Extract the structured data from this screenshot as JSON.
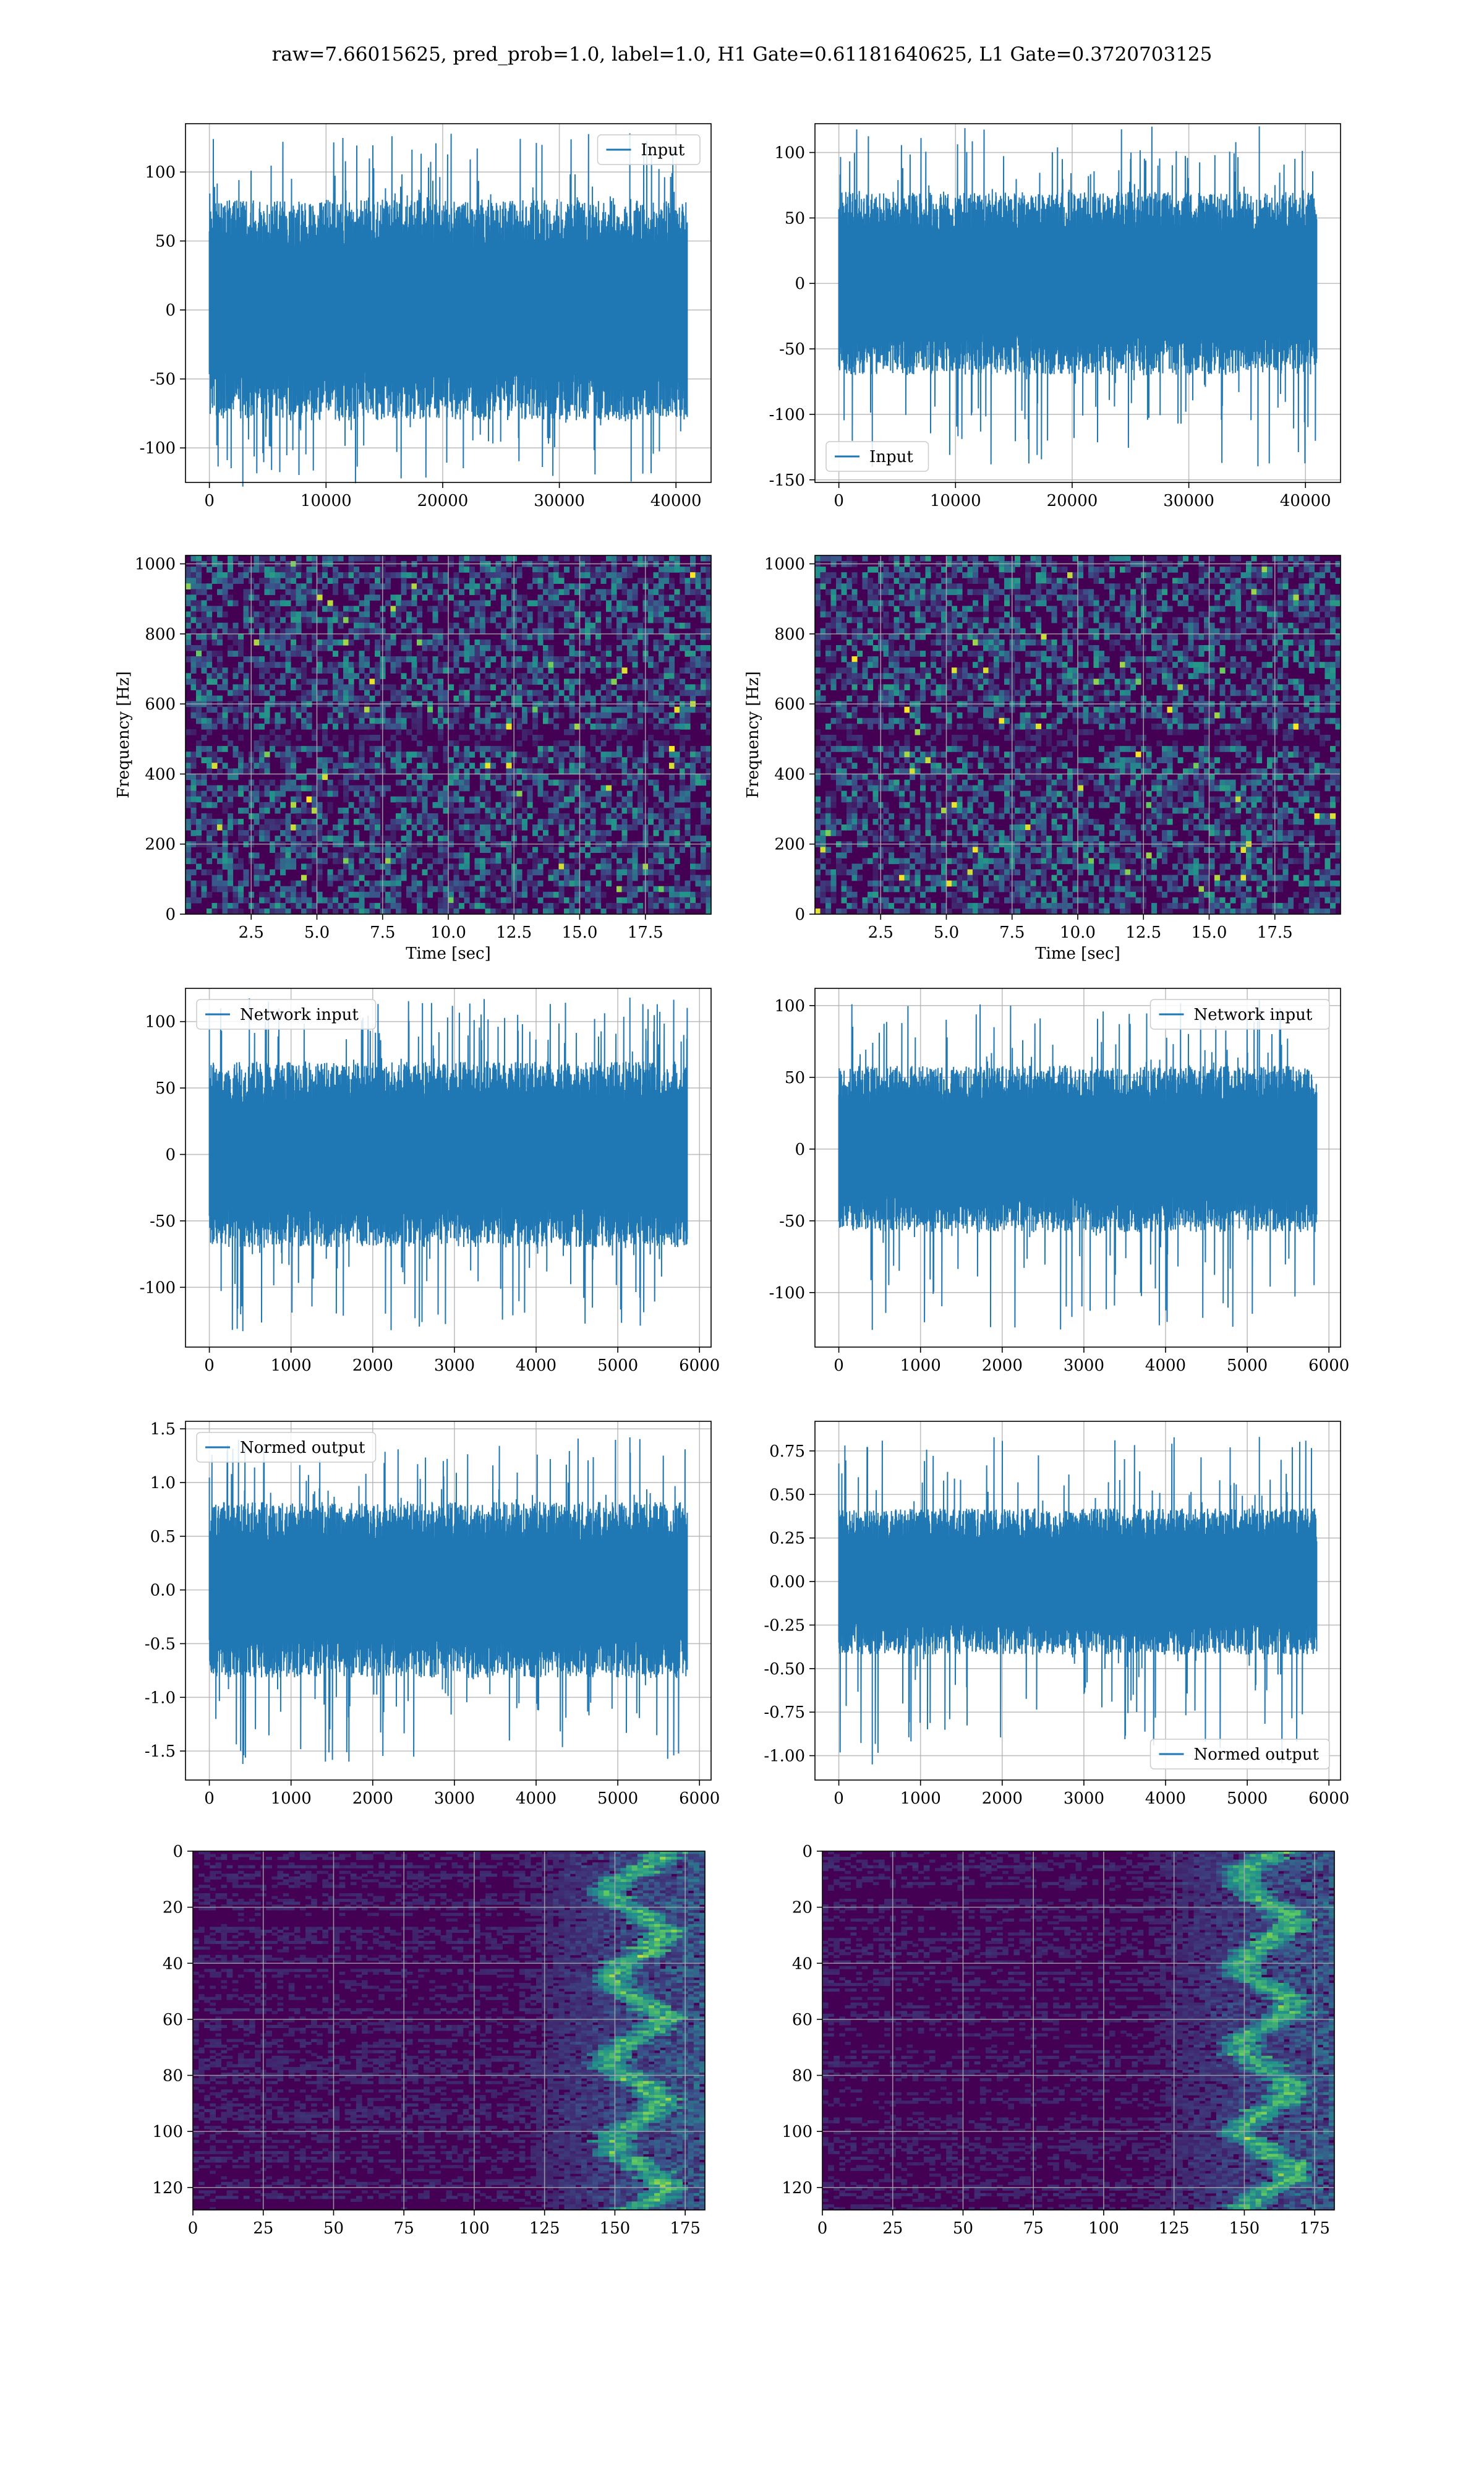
{
  "figure": {
    "title": "raw=7.66015625, pred_prob=1.0, label=1.0, H1 Gate=0.61181640625, L1 Gate=0.3720703125",
    "colors": {
      "line": "#1f77b4",
      "grid": "#b0b0b0",
      "viridis_low": "#440154",
      "viridis_mid": "#21918c",
      "viridis_high": "#fde725"
    }
  },
  "chart_data": [
    {
      "id": "h1-input",
      "type": "line",
      "series": [
        {
          "name": "Input",
          "amplitude": 80,
          "spike_max": 128,
          "spike_min": -128
        }
      ],
      "x": {
        "range": [
          0,
          40960
        ]
      },
      "xlim": [
        -2048,
        43008
      ],
      "ylim": [
        -125,
        135
      ],
      "xticks": [
        "0",
        "10000",
        "20000",
        "30000",
        "40000"
      ],
      "yticks": [
        "-100",
        "-50",
        "0",
        "50",
        "100"
      ],
      "legend": "top-right",
      "grid": true,
      "xlabel": "",
      "ylabel": ""
    },
    {
      "id": "l1-input",
      "type": "line",
      "series": [
        {
          "name": "Input",
          "amplitude": 70,
          "spike_max": 120,
          "spike_min": -140
        }
      ],
      "x": {
        "range": [
          0,
          40960
        ]
      },
      "xlim": [
        -2048,
        43008
      ],
      "ylim": [
        -152,
        122
      ],
      "xticks": [
        "0",
        "10000",
        "20000",
        "30000",
        "40000"
      ],
      "yticks": [
        "-150",
        "-100",
        "-50",
        "0",
        "50",
        "100"
      ],
      "legend": "bottom-left",
      "grid": true,
      "xlabel": "",
      "ylabel": ""
    },
    {
      "id": "h1-spectrogram",
      "type": "heatmap",
      "colormap": "viridis",
      "xlim": [
        0,
        20
      ],
      "ylim": [
        0,
        1024
      ],
      "xticks": [
        "2.5",
        "5.0",
        "7.5",
        "10.0",
        "12.5",
        "15.0",
        "17.5"
      ],
      "yticks": [
        "0",
        "200",
        "400",
        "600",
        "800",
        "1000"
      ],
      "xlabel": "Time [sec]",
      "ylabel": "Frequency [Hz]",
      "grid": true
    },
    {
      "id": "l1-spectrogram",
      "type": "heatmap",
      "colormap": "viridis",
      "xlim": [
        0,
        20
      ],
      "ylim": [
        0,
        1024
      ],
      "xticks": [
        "2.5",
        "5.0",
        "7.5",
        "10.0",
        "12.5",
        "15.0",
        "17.5"
      ],
      "yticks": [
        "0",
        "200",
        "400",
        "600",
        "800",
        "1000"
      ],
      "xlabel": "Time [sec]",
      "ylabel": "Frequency [Hz]",
      "grid": true
    },
    {
      "id": "h1-network-input",
      "type": "line",
      "series": [
        {
          "name": "Network input",
          "amplitude": 70,
          "spike_max": 118,
          "spike_min": -133
        }
      ],
      "x": {
        "range": [
          0,
          5850
        ]
      },
      "xlim": [
        -292,
        6142
      ],
      "ylim": [
        -145,
        125
      ],
      "xticks": [
        "0",
        "1000",
        "2000",
        "3000",
        "4000",
        "5000",
        "6000"
      ],
      "yticks": [
        "-100",
        "-50",
        "0",
        "50",
        "100"
      ],
      "legend": "top-left",
      "grid": true,
      "xlabel": "",
      "ylabel": ""
    },
    {
      "id": "l1-network-input",
      "type": "line",
      "series": [
        {
          "name": "Network input",
          "amplitude": 58,
          "spike_max": 104,
          "spike_min": -126
        }
      ],
      "x": {
        "range": [
          0,
          5850
        ]
      },
      "xlim": [
        -292,
        6142
      ],
      "ylim": [
        -138,
        112
      ],
      "xticks": [
        "0",
        "1000",
        "2000",
        "3000",
        "4000",
        "5000",
        "6000"
      ],
      "yticks": [
        "-100",
        "-50",
        "0",
        "50",
        "100"
      ],
      "legend": "top-right",
      "grid": true,
      "xlabel": "",
      "ylabel": ""
    },
    {
      "id": "h1-normed-output",
      "type": "line",
      "series": [
        {
          "name": "Normed output",
          "amplitude": 0.82,
          "spike_max": 1.42,
          "spike_min": -1.62
        }
      ],
      "x": {
        "range": [
          0,
          5850
        ]
      },
      "xlim": [
        -292,
        6142
      ],
      "ylim": [
        -1.77,
        1.57
      ],
      "xticks": [
        "0",
        "1000",
        "2000",
        "3000",
        "4000",
        "5000",
        "6000"
      ],
      "yticks": [
        "-1.5",
        "-1.0",
        "-0.5",
        "0.0",
        "0.5",
        "1.0",
        "1.5"
      ],
      "legend": "top-left",
      "grid": true,
      "xlabel": "",
      "ylabel": ""
    },
    {
      "id": "l1-normed-output",
      "type": "line",
      "series": [
        {
          "name": "Normed output",
          "amplitude": 0.42,
          "spike_max": 0.83,
          "spike_min": -1.05
        }
      ],
      "x": {
        "range": [
          0,
          5850
        ]
      },
      "xlim": [
        -292,
        6142
      ],
      "ylim": [
        -1.14,
        0.92
      ],
      "xticks": [
        "0",
        "1000",
        "2000",
        "3000",
        "4000",
        "5000",
        "6000"
      ],
      "yticks": [
        "-1.00",
        "-0.75",
        "-0.50",
        "-0.25",
        "0.00",
        "0.25",
        "0.50",
        "0.75"
      ],
      "legend": "bottom-right",
      "grid": true,
      "xlabel": "",
      "ylabel": ""
    },
    {
      "id": "h1-activations",
      "type": "heatmap",
      "colormap": "viridis",
      "xlim": [
        0,
        182
      ],
      "ylim": [
        128,
        0
      ],
      "xticks": [
        "0",
        "25",
        "50",
        "75",
        "100",
        "125",
        "150",
        "175"
      ],
      "yticks": [
        "0",
        "20",
        "40",
        "60",
        "80",
        "100",
        "120"
      ],
      "xlabel": "",
      "ylabel": "",
      "grid": true
    },
    {
      "id": "l1-activations",
      "type": "heatmap",
      "colormap": "viridis",
      "xlim": [
        0,
        182
      ],
      "ylim": [
        128,
        0
      ],
      "xticks": [
        "0",
        "25",
        "50",
        "75",
        "100",
        "125",
        "150",
        "175"
      ],
      "yticks": [
        "0",
        "20",
        "40",
        "60",
        "80",
        "100",
        "120"
      ],
      "xlabel": "",
      "ylabel": "",
      "grid": true
    }
  ]
}
